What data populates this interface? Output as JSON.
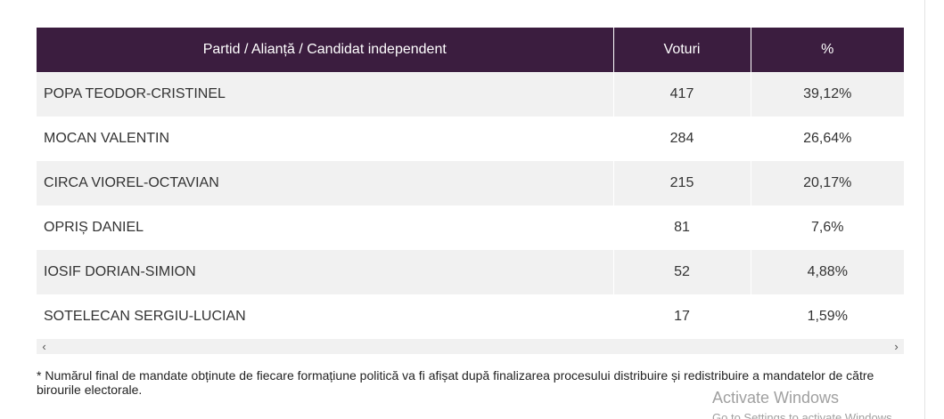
{
  "table": {
    "headers": [
      "Partid / Alianță / Candidat independent",
      "Voturi",
      "%"
    ],
    "rows": [
      {
        "name": "POPA TEODOR-CRISTINEL",
        "votes": "417",
        "percent": "39,12%"
      },
      {
        "name": "MOCAN VALENTIN",
        "votes": "284",
        "percent": "26,64%"
      },
      {
        "name": "CIRCA VIOREL-OCTAVIAN",
        "votes": "215",
        "percent": "20,17%"
      },
      {
        "name": "OPRIȘ DANIEL",
        "votes": "81",
        "percent": "7,6%"
      },
      {
        "name": "IOSIF DORIAN-SIMION",
        "votes": "52",
        "percent": "4,88%"
      },
      {
        "name": "SOTELECAN SERGIU-LUCIAN",
        "votes": "17",
        "percent": "1,59%"
      }
    ]
  },
  "scrollbar": {
    "left_arrow": "‹",
    "right_arrow": "›"
  },
  "footnote": "* Numărul final de mandate obținute de fiecare formațiune politică va fi afișat după finalizarea procesului distribuire și redistribuire a mandatelor de către birourile electorale.",
  "watermark": {
    "line1": "Activate Windows",
    "line2": "Go to Settings to activate Windows."
  },
  "colors": {
    "header_bg": "#3b1d3f",
    "stripe_bg": "#f1f1f1"
  }
}
